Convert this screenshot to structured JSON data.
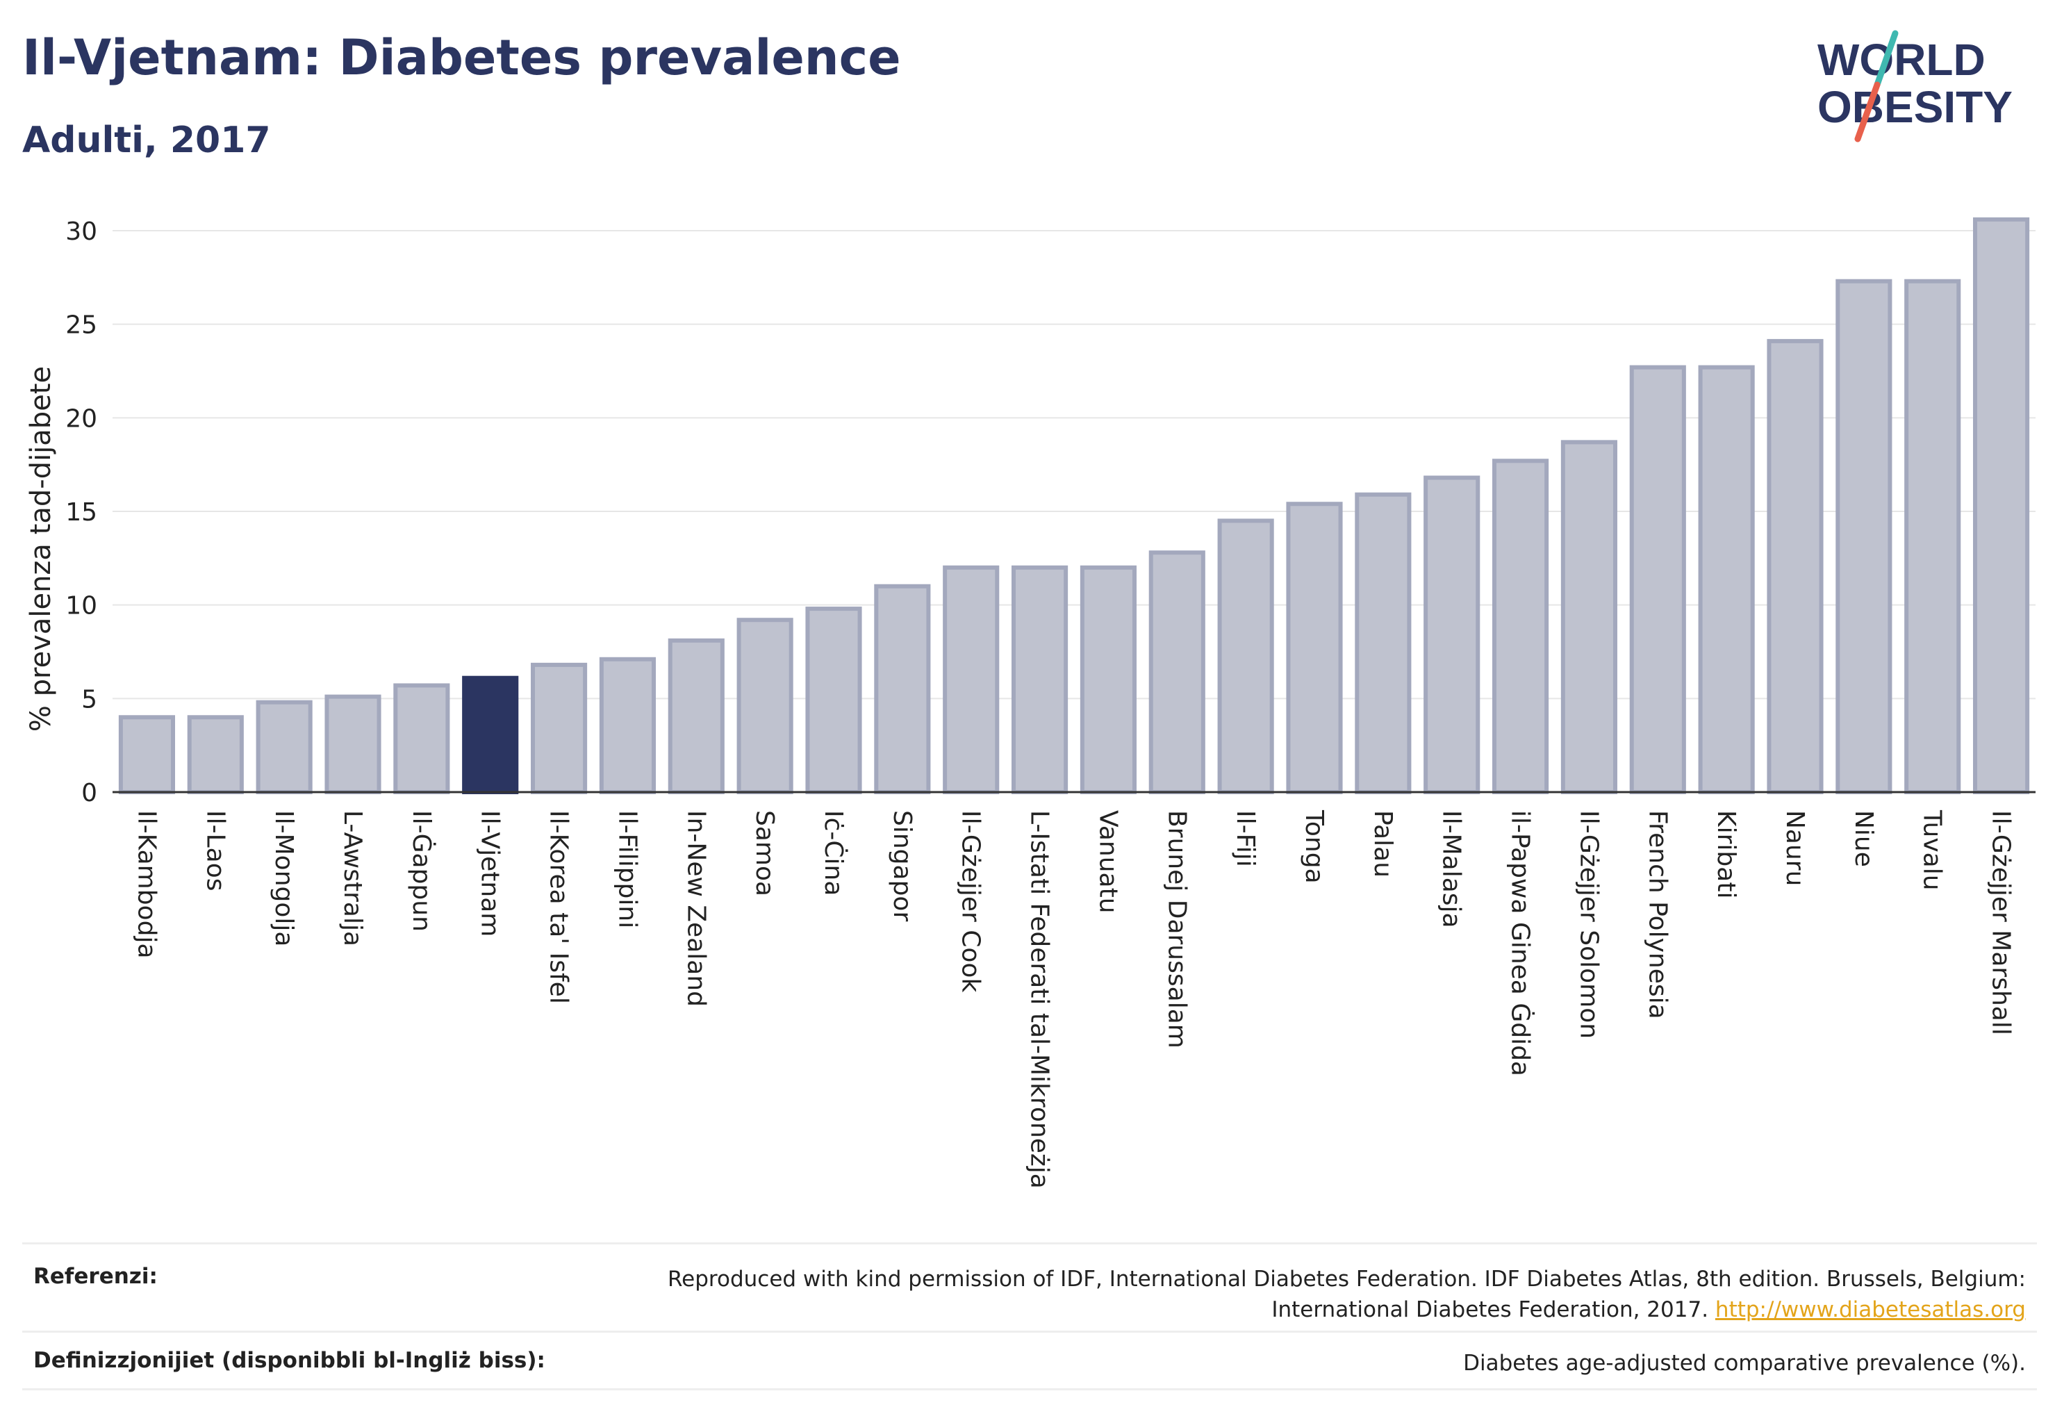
{
  "header": {
    "title": "Il-Vjetnam: Diabetes prevalence",
    "subtitle": "Adulti, 2017"
  },
  "logo": {
    "line1": "WORLD",
    "line2": "OBESITY",
    "colors": {
      "text": "#2b3561",
      "slash_top": "#3fb8b0",
      "slash_bottom": "#e8604c"
    }
  },
  "colors": {
    "bar_fill": "#bfc2cf",
    "bar_stroke": "#a3a8bd",
    "highlight_fill": "#2b3561",
    "grid": "#e6e6e6",
    "text": "#2b3561",
    "link": "#e3a41a"
  },
  "chart_data": {
    "type": "bar",
    "ylabel": "% prevalenza tad-dijabete",
    "xlabel": "",
    "ylim": [
      0,
      31
    ],
    "yticks": [
      0,
      5,
      10,
      15,
      20,
      25,
      30
    ],
    "grid": true,
    "highlight": "Il-Vjetnam",
    "categories": [
      "Il-Kambodja",
      "Il-Laos",
      "Il-Mongolja",
      "L-Awstralja",
      "Il-Ġappun",
      "Il-Vjetnam",
      "Il-Korea ta' Isfel",
      "Il-Filippini",
      "In-New Zealand",
      "Samoa",
      "Iċ-Ċina",
      "Singapor",
      "Il-Gżejjer Cook",
      "L-Istati Federati tal-Mikroneżja",
      "Vanuatu",
      "Brunej Darussalam",
      "Il-Fiji",
      "Tonga",
      "Palau",
      "Il-Malasja",
      "il-Papwa Ginea Ġdida",
      "Il-Gżejjer Solomon",
      "French Polynesia",
      "Kiribati",
      "Nauru",
      "Niue",
      "Tuvalu",
      "Il-Gżejjer Marshall"
    ],
    "values": [
      4.0,
      4.0,
      4.8,
      5.1,
      5.7,
      6.1,
      6.8,
      7.1,
      8.1,
      9.2,
      9.8,
      11.0,
      12.0,
      12.0,
      12.0,
      12.8,
      14.5,
      15.4,
      15.9,
      16.8,
      17.7,
      18.7,
      22.7,
      22.7,
      24.1,
      27.3,
      27.3,
      30.6
    ]
  },
  "footer": {
    "references_label": "Referenzi:",
    "references_line1": "Reproduced with kind permission of IDF, International Diabetes Federation. IDF Diabetes Atlas, 8th edition. Brussels, Belgium:",
    "references_line2": "International Diabetes Federation, 2017.",
    "references_link": "http://www.diabetesatlas.org",
    "definitions_label": "Definizzjonijiet (disponibbli bl-Ingliż biss):",
    "definitions_text": "Diabetes age-adjusted comparative prevalence (%)."
  }
}
